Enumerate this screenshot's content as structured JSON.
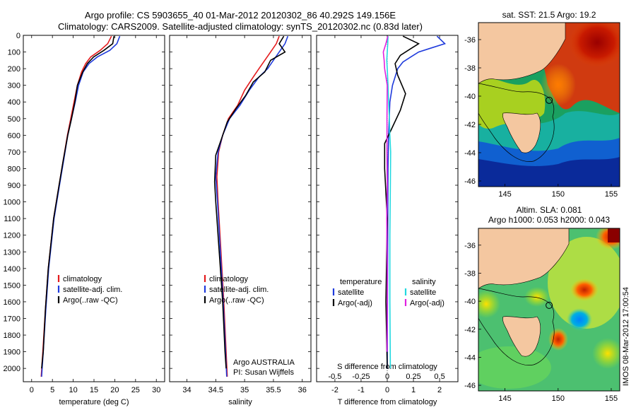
{
  "header": {
    "title_line1": "Argo profile: CS 5903655_40 01-Mar-2012 20120302_86 40.292S 149.156E",
    "title_line2": "Climatology: CARS2009. Satellite-adjusted climatology: synTS_20120302.nc (0.83d later)"
  },
  "colors": {
    "climatology": "#e41a1c",
    "satellite": "#1f3bdc",
    "argo": "#000000",
    "temp_diff_satellite": "#1f3bdc",
    "sal_diff_satellite": "#22d8e0",
    "sal_diff_argo": "#e020e0",
    "land": "#f4c7a0"
  },
  "stamp": "IMOS 08-Mar-2012 17:00:54",
  "chart_data": [
    {
      "type": "line",
      "id": "temperature",
      "xlabel": "temperature (deg C)",
      "ylabel": "",
      "xlim": [
        -2,
        32
      ],
      "ylim": [
        2080,
        0
      ],
      "xticks": [
        0,
        5,
        10,
        15,
        20,
        25,
        30
      ],
      "yticks": [
        0,
        100,
        200,
        300,
        400,
        500,
        600,
        700,
        800,
        900,
        1000,
        1100,
        1200,
        1300,
        1400,
        1500,
        1600,
        1700,
        1800,
        1900,
        2000
      ],
      "legend": [
        "climatology",
        "satellite-adj. clim.",
        "Argo(..raw -QC)"
      ],
      "legend_position": "center",
      "series": [
        {
          "name": "climatology",
          "color_key": "climatology",
          "x": [
            19.2,
            18.3,
            16.5,
            14.2,
            13.0,
            12.0,
            11.0,
            10.2,
            9.4,
            8.6,
            7.6,
            6.6,
            5.3,
            4.0,
            3.3,
            2.7,
            2.3
          ],
          "y": [
            5,
            50,
            90,
            130,
            170,
            220,
            300,
            400,
            500,
            600,
            750,
            900,
            1100,
            1400,
            1650,
            1900,
            2050
          ]
        },
        {
          "name": "satellite-adj. clim.",
          "color_key": "satellite",
          "x": [
            21.2,
            20.5,
            18.8,
            15.8,
            13.8,
            12.4,
            11.3,
            10.5,
            9.6,
            8.7,
            7.7,
            6.7,
            5.4,
            4.1,
            3.4,
            2.8,
            2.4
          ],
          "y": [
            5,
            50,
            90,
            130,
            170,
            220,
            300,
            400,
            500,
            600,
            750,
            900,
            1100,
            1400,
            1650,
            1900,
            2050
          ]
        },
        {
          "name": "Argo(..raw -QC)",
          "color_key": "argo",
          "x": [
            19.8,
            19.5,
            17.4,
            14.9,
            13.4,
            12.3,
            11.0,
            10.4,
            9.6,
            8.7,
            7.6,
            6.6,
            5.3,
            4.0,
            3.3,
            2.8,
            2.4
          ],
          "y": [
            5,
            50,
            90,
            130,
            170,
            220,
            300,
            400,
            500,
            600,
            750,
            900,
            1100,
            1400,
            1650,
            1900,
            2000
          ]
        }
      ]
    },
    {
      "type": "line",
      "id": "salinity",
      "xlabel": "salinity",
      "ylabel": "",
      "xlim": [
        33.7,
        36.15
      ],
      "ylim": [
        2080,
        0
      ],
      "xticks": [
        34,
        34.5,
        35,
        35.5,
        36
      ],
      "legend": [
        "climatology",
        "satellite-adj. clim.",
        "Argo(..raw -QC)"
      ],
      "legend_position": "center",
      "annotations": [
        "Argo AUSTRALIA",
        "PI: Susan Wijffels"
      ],
      "series": [
        {
          "name": "climatology",
          "color_key": "climatology",
          "x": [
            35.6,
            35.55,
            35.45,
            35.35,
            35.25,
            35.15,
            35.0,
            34.88,
            34.72,
            34.62,
            34.55,
            34.52,
            34.54,
            34.59,
            34.64,
            34.68,
            34.7
          ],
          "y": [
            5,
            50,
            100,
            150,
            200,
            250,
            330,
            420,
            500,
            600,
            700,
            850,
            1000,
            1300,
            1600,
            1900,
            2050
          ]
        },
        {
          "name": "satellite-adj. clim.",
          "color_key": "satellite",
          "x": [
            35.75,
            35.7,
            35.6,
            35.5,
            35.4,
            35.25,
            35.08,
            34.92,
            34.74,
            34.62,
            34.54,
            34.5,
            34.53,
            34.58,
            34.63,
            34.67,
            34.69
          ],
          "y": [
            5,
            50,
            100,
            150,
            200,
            250,
            330,
            420,
            500,
            600,
            700,
            850,
            1000,
            1300,
            1600,
            1900,
            2050
          ]
        },
        {
          "name": "Argo(..raw -QC)",
          "color_key": "argo",
          "x": [
            35.68,
            35.6,
            35.7,
            35.45,
            35.35,
            35.15,
            35.02,
            34.85,
            34.7,
            34.6,
            34.5,
            34.48,
            34.5,
            34.56,
            34.62,
            34.66,
            34.68
          ],
          "y": [
            5,
            50,
            100,
            150,
            220,
            280,
            360,
            440,
            520,
            620,
            720,
            880,
            1000,
            1300,
            1600,
            1900,
            2000
          ]
        }
      ]
    },
    {
      "type": "line",
      "id": "differences",
      "xlabel": "T difference from climatology",
      "x2label": "S difference from climatology",
      "ylabel": "",
      "xlim": [
        -2.7,
        2.7
      ],
      "ylim": [
        2080,
        0
      ],
      "xticks": [
        -2,
        -1,
        0,
        1,
        2
      ],
      "x2ticks": [
        "-0.5",
        "-0.25",
        "0",
        "0.25",
        "0.5"
      ],
      "legend_titles": [
        "temperature",
        "salinity"
      ],
      "legend": [
        "satellite",
        "Argo(-adj)",
        "satellite",
        "Argo(-adj)"
      ],
      "legend_position": "center",
      "series": [
        {
          "name": "satellite",
          "group": "temperature",
          "color_key": "temp_diff_satellite",
          "x": [
            1.9,
            2.2,
            1.6,
            1.2,
            0.9,
            0.6,
            0.4,
            0.2,
            0.1,
            0.05,
            0.03,
            0.02,
            0.0
          ],
          "y": [
            5,
            50,
            80,
            100,
            130,
            160,
            200,
            300,
            400,
            600,
            800,
            1200,
            2000
          ]
        },
        {
          "name": "Argo(-adj)",
          "group": "temperature",
          "color_key": "argo",
          "x": [
            0.6,
            1.2,
            0.9,
            0.5,
            0.3,
            0.4,
            0.7,
            0.5,
            0.2,
            -0.1,
            -0.1,
            0.0,
            -0.05,
            0.0
          ],
          "y": [
            5,
            50,
            80,
            120,
            170,
            240,
            350,
            450,
            550,
            650,
            800,
            1100,
            1600,
            2000
          ]
        },
        {
          "name": "satellite",
          "group": "salinity",
          "color_key": "sal_diff_satellite",
          "x": [
            0.03,
            0.02,
            0.0,
            -0.02,
            0.0,
            0.03,
            0.05,
            0.08,
            0.1,
            0.13,
            0.12,
            0.1,
            0.1,
            0.12
          ],
          "y": [
            5,
            50,
            100,
            150,
            200,
            300,
            400,
            500,
            600,
            700,
            900,
            1200,
            1600,
            2000
          ]
        },
        {
          "name": "Argo(-adj)",
          "group": "salinity",
          "color_key": "sal_diff_argo",
          "x": [
            0.02,
            -0.05,
            -0.15,
            -0.12,
            -0.1,
            0.0,
            -0.01,
            -0.01,
            0.0,
            -0.02,
            0.0,
            -0.01
          ],
          "y": [
            5,
            50,
            100,
            150,
            200,
            300,
            500,
            700,
            900,
            1100,
            1500,
            1900
          ]
        }
      ]
    },
    {
      "type": "heatmap",
      "id": "sst_map",
      "title": "sat. SST: 21.5  Argo: 19.2",
      "xlim": [
        142.5,
        155.8
      ],
      "ylim": [
        -46.4,
        -34.8
      ],
      "xticks": [
        145,
        150,
        155
      ],
      "yticks": [
        -36,
        -38,
        -40,
        -42,
        -44,
        -46
      ],
      "marker": {
        "lon": 149.156,
        "lat": -40.292
      }
    },
    {
      "type": "heatmap",
      "id": "sla_map",
      "title": "Altim. SLA: 0.081",
      "subtitle": "Argo h1000: 0.053 h2000: 0.043",
      "xlim": [
        142.5,
        155.8
      ],
      "ylim": [
        -46.4,
        -34.8
      ],
      "xticks": [
        145,
        150,
        155
      ],
      "yticks": [
        -36,
        -38,
        -40,
        -42,
        -44,
        -46
      ],
      "marker": {
        "lon": 149.156,
        "lat": -40.292
      }
    }
  ]
}
